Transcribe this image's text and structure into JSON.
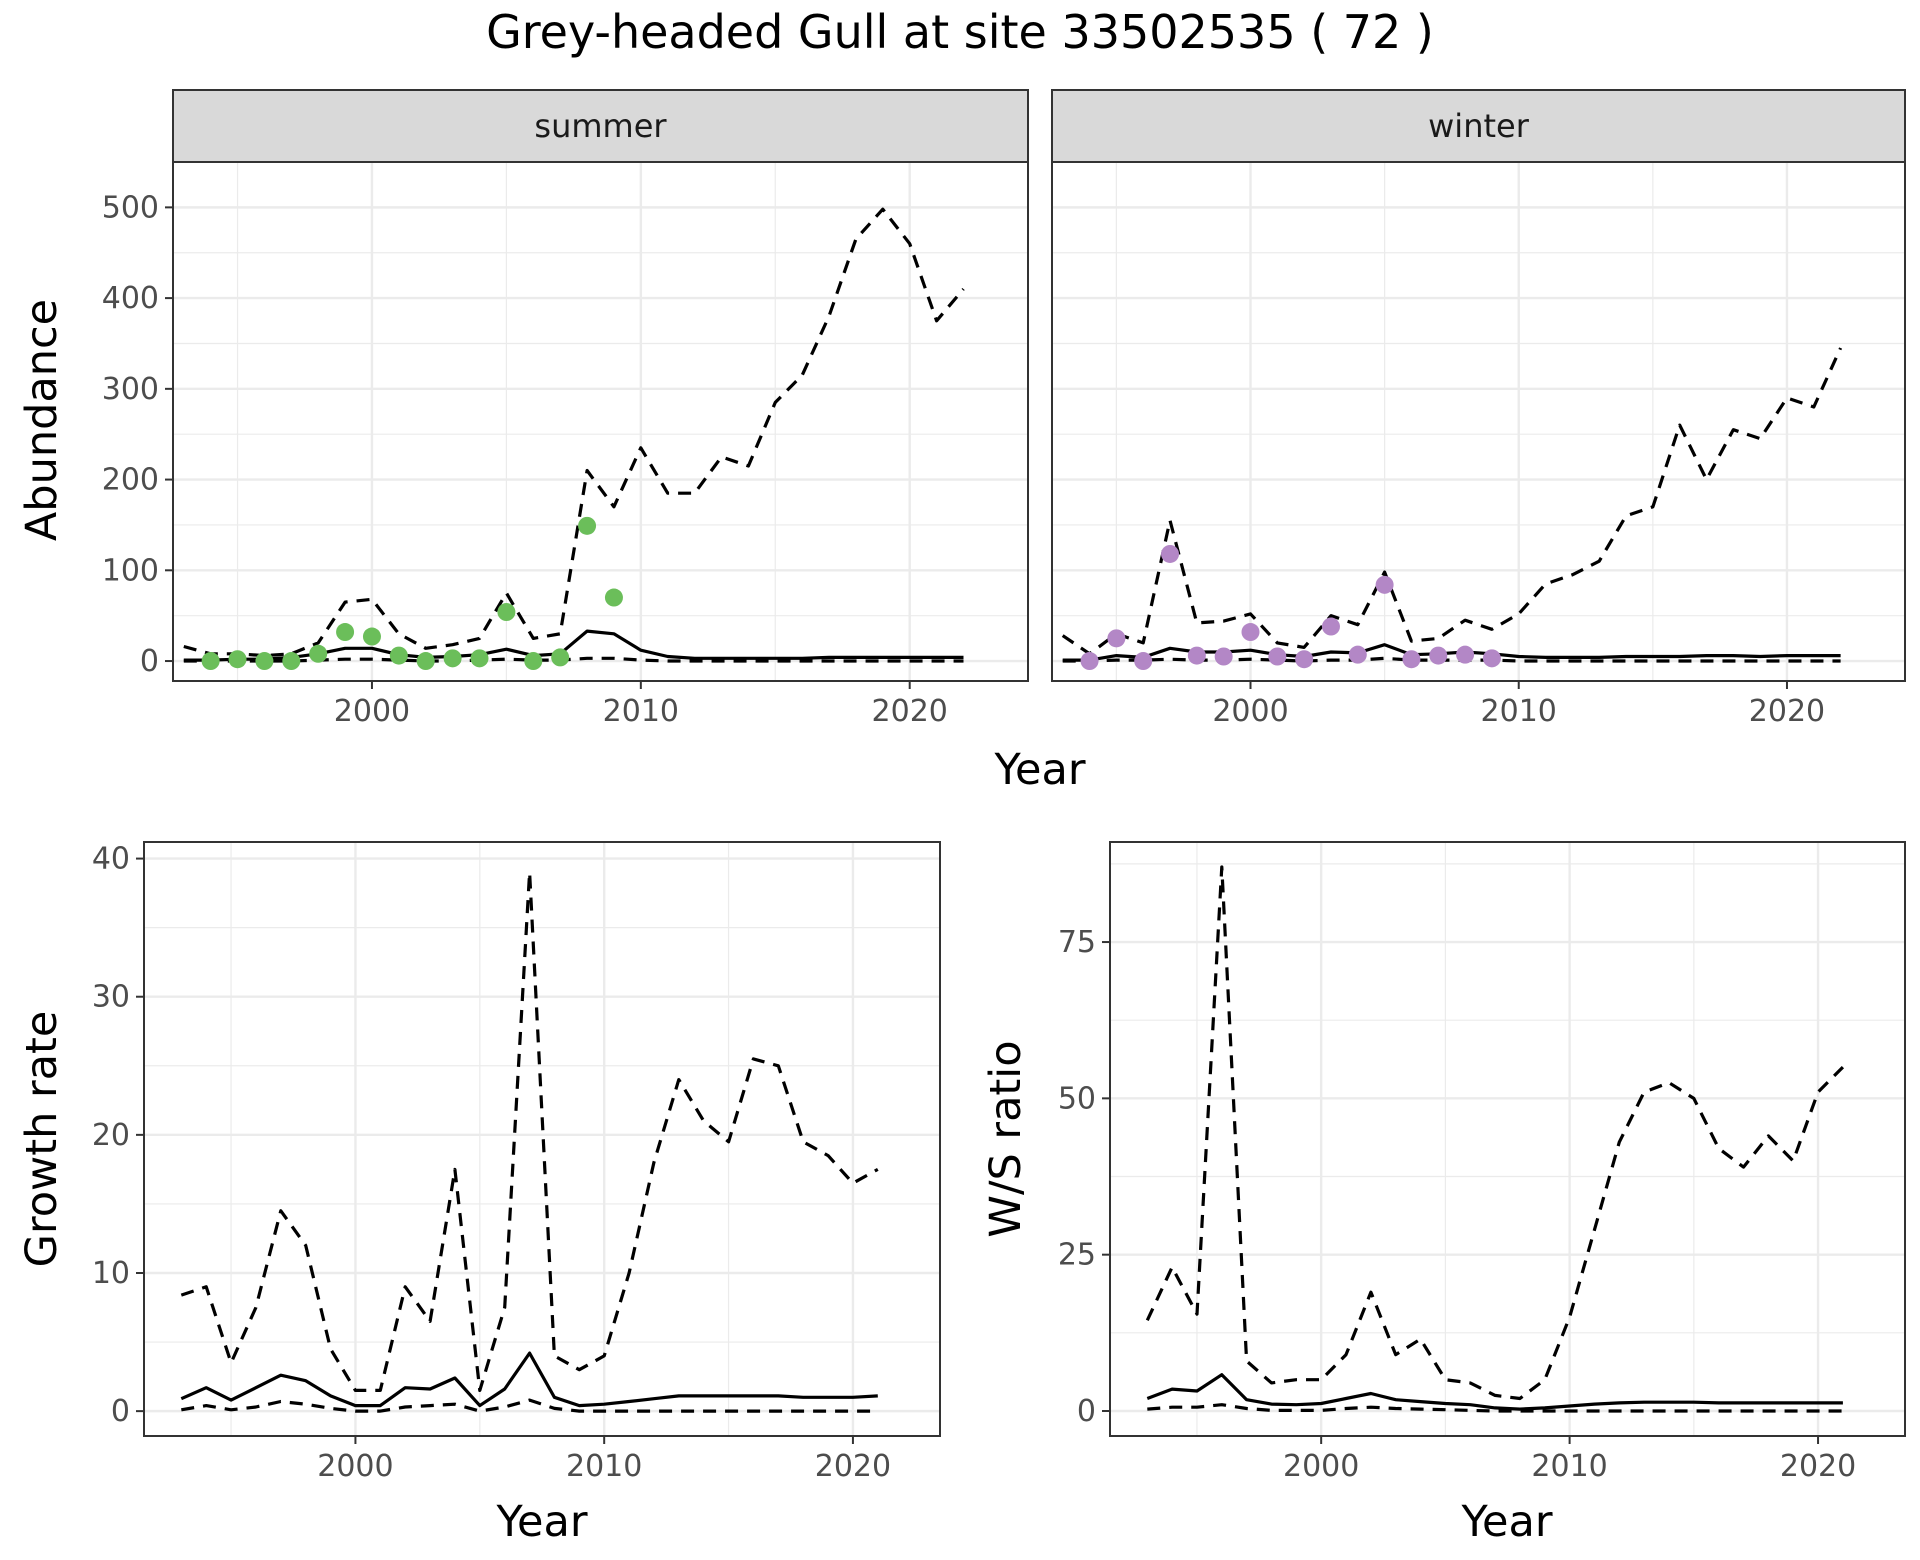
{
  "title": "Grey-headed Gull at site 33502535 ( 72 )",
  "colors": {
    "summer_points": "#6BBE5A",
    "winter_points": "#B387C6",
    "lines": "#000000",
    "grid": "#EBEBEB",
    "strip_bg": "#D9D9D9"
  },
  "chart_data": [
    {
      "type": "line",
      "panel": "summer",
      "strip": "summer",
      "xlabel": "Year",
      "ylabel": "Abundance",
      "xlim": [
        1992.6,
        2024.4
      ],
      "ylim": [
        -22,
        550
      ],
      "x_ticks": [
        2000,
        2010,
        2020
      ],
      "y_ticks": [
        0,
        100,
        200,
        300,
        400,
        500
      ],
      "grid": true,
      "series": [
        {
          "style": "dashed",
          "x": [
            1993,
            1994,
            1995,
            1996,
            1997,
            1998,
            1999,
            2000,
            2001,
            2002,
            2003,
            2004,
            2005,
            2006,
            2007,
            2008,
            2009,
            2010,
            2011,
            2012,
            2013,
            2014,
            2015,
            2016,
            2017,
            2018,
            2019,
            2020,
            2021,
            2022
          ],
          "y": [
            16,
            8,
            8,
            6,
            8,
            20,
            65,
            68,
            30,
            14,
            18,
            25,
            75,
            25,
            30,
            210,
            170,
            235,
            185,
            185,
            225,
            215,
            285,
            315,
            380,
            465,
            498,
            460,
            375,
            410
          ]
        },
        {
          "style": "solid",
          "x": [
            1993,
            1994,
            1995,
            1996,
            1997,
            1998,
            1999,
            2000,
            2001,
            2002,
            2003,
            2004,
            2005,
            2006,
            2007,
            2008,
            2009,
            2010,
            2011,
            2012,
            2013,
            2014,
            2015,
            2016,
            2017,
            2018,
            2019,
            2020,
            2021,
            2022
          ],
          "y": [
            1,
            1,
            2,
            2,
            4,
            8,
            14,
            14,
            7,
            4,
            5,
            7,
            13,
            6,
            8,
            33,
            30,
            12,
            5,
            3,
            3,
            3,
            3,
            3,
            4,
            4,
            4,
            4,
            4,
            4
          ]
        },
        {
          "style": "dashed",
          "x": [
            1993,
            1994,
            1995,
            1996,
            1997,
            1998,
            1999,
            2000,
            2001,
            2002,
            2003,
            2004,
            2005,
            2006,
            2007,
            2008,
            2009,
            2010,
            2011,
            2012,
            2013,
            2014,
            2015,
            2016,
            2017,
            2018,
            2019,
            2020,
            2021,
            2022
          ],
          "y": [
            0,
            0,
            0,
            0,
            0,
            1,
            2,
            2,
            1,
            0,
            0,
            1,
            2,
            1,
            1,
            3,
            3,
            1,
            0,
            0,
            0,
            0,
            0,
            0,
            0,
            0,
            0,
            0,
            0,
            0
          ]
        },
        {
          "style": "points",
          "color": "#6BBE5A",
          "x": [
            1994,
            1995,
            1996,
            1997,
            1998,
            1999,
            2000,
            2001,
            2002,
            2003,
            2004,
            2005,
            2006,
            2007,
            2008,
            2009
          ],
          "y": [
            0,
            2,
            0,
            0,
            8,
            32,
            27,
            6,
            0,
            3,
            3,
            54,
            0,
            4,
            149,
            70
          ]
        }
      ]
    },
    {
      "type": "line",
      "panel": "winter",
      "strip": "winter",
      "xlabel": "Year",
      "ylabel": "Abundance",
      "xlim": [
        1992.6,
        2024.4
      ],
      "ylim": [
        -22,
        550
      ],
      "x_ticks": [
        2000,
        2010,
        2020
      ],
      "y_ticks": [
        0,
        100,
        200,
        300,
        400,
        500
      ],
      "grid": true,
      "series": [
        {
          "style": "dashed",
          "x": [
            1993,
            1994,
            1995,
            1996,
            1997,
            1998,
            1999,
            2000,
            2001,
            2002,
            2003,
            2004,
            2005,
            2006,
            2007,
            2008,
            2009,
            2010,
            2011,
            2012,
            2013,
            2014,
            2015,
            2016,
            2017,
            2018,
            2019,
            2020,
            2021,
            2022
          ],
          "y": [
            28,
            8,
            30,
            20,
            155,
            42,
            44,
            52,
            20,
            15,
            50,
            40,
            98,
            22,
            25,
            45,
            35,
            52,
            85,
            95,
            110,
            160,
            170,
            260,
            200,
            255,
            245,
            290,
            280,
            345
          ]
        },
        {
          "style": "solid",
          "x": [
            1993,
            1994,
            1995,
            1996,
            1997,
            1998,
            1999,
            2000,
            2001,
            2002,
            2003,
            2004,
            2005,
            2006,
            2007,
            2008,
            2009,
            2010,
            2011,
            2012,
            2013,
            2014,
            2015,
            2016,
            2017,
            2018,
            2019,
            2020,
            2021,
            2022
          ],
          "y": [
            1,
            1,
            6,
            4,
            14,
            10,
            10,
            12,
            7,
            5,
            10,
            9,
            18,
            7,
            8,
            10,
            8,
            5,
            4,
            4,
            4,
            5,
            5,
            5,
            6,
            6,
            5,
            6,
            6,
            6
          ]
        },
        {
          "style": "dashed",
          "x": [
            1993,
            1994,
            1995,
            1996,
            1997,
            1998,
            1999,
            2000,
            2001,
            2002,
            2003,
            2004,
            2005,
            2006,
            2007,
            2008,
            2009,
            2010,
            2011,
            2012,
            2013,
            2014,
            2015,
            2016,
            2017,
            2018,
            2019,
            2020,
            2021,
            2022
          ],
          "y": [
            0,
            0,
            1,
            1,
            2,
            1,
            1,
            2,
            1,
            0,
            1,
            1,
            3,
            1,
            1,
            1,
            1,
            0,
            0,
            0,
            0,
            0,
            0,
            0,
            0,
            0,
            0,
            0,
            0,
            0
          ]
        },
        {
          "style": "points",
          "color": "#B387C6",
          "x": [
            1994,
            1995,
            1996,
            1997,
            1998,
            1999,
            2000,
            2001,
            2002,
            2003,
            2004,
            2005,
            2006,
            2007,
            2008,
            2009
          ],
          "y": [
            0,
            25,
            0,
            118,
            6,
            5,
            32,
            5,
            2,
            38,
            7,
            84,
            2,
            6,
            7,
            3
          ]
        }
      ]
    },
    {
      "type": "line",
      "panel": "growth",
      "xlabel": "Year",
      "ylabel": "Growth rate",
      "xlim": [
        1991.5,
        2023.5
      ],
      "ylim": [
        -1.8,
        41.2
      ],
      "x_ticks": [
        2000,
        2010,
        2020
      ],
      "y_ticks": [
        0,
        10,
        20,
        30,
        40
      ],
      "grid": true,
      "series": [
        {
          "style": "dashed",
          "x": [
            1993,
            1994,
            1995,
            1996,
            1997,
            1998,
            1999,
            2000,
            2001,
            2002,
            2003,
            2004,
            2005,
            2006,
            2007,
            2008,
            2009,
            2010,
            2011,
            2012,
            2013,
            2014,
            2015,
            2016,
            2017,
            2018,
            2019,
            2020,
            2021
          ],
          "y": [
            8.4,
            9,
            3.5,
            7.5,
            14.5,
            12,
            4.5,
            1.5,
            1.5,
            9,
            6.5,
            17.5,
            1.5,
            7.5,
            39,
            4,
            3,
            4,
            10,
            18,
            24,
            21,
            19.5,
            25.5,
            25,
            19.5,
            18.5,
            16.5,
            17.5
          ]
        },
        {
          "style": "solid",
          "x": [
            1993,
            1994,
            1995,
            1996,
            1997,
            1998,
            1999,
            2000,
            2001,
            2002,
            2003,
            2004,
            2005,
            2006,
            2007,
            2008,
            2009,
            2010,
            2011,
            2012,
            2013,
            2014,
            2015,
            2016,
            2017,
            2018,
            2019,
            2020,
            2021
          ],
          "y": [
            0.9,
            1.7,
            0.8,
            1.7,
            2.6,
            2.2,
            1.1,
            0.4,
            0.4,
            1.7,
            1.6,
            2.4,
            0.4,
            1.6,
            4.2,
            1,
            0.4,
            0.5,
            0.7,
            0.9,
            1.1,
            1.1,
            1.1,
            1.1,
            1.1,
            1,
            1,
            1,
            1.1
          ]
        },
        {
          "style": "dashed",
          "x": [
            1993,
            1994,
            1995,
            1996,
            1997,
            1998,
            1999,
            2000,
            2001,
            2002,
            2003,
            2004,
            2005,
            2006,
            2007,
            2008,
            2009,
            2010,
            2011,
            2012,
            2013,
            2014,
            2015,
            2016,
            2017,
            2018,
            2019,
            2020,
            2021
          ],
          "y": [
            0.1,
            0.4,
            0.1,
            0.3,
            0.7,
            0.5,
            0.2,
            0,
            0,
            0.3,
            0.4,
            0.5,
            0,
            0.3,
            0.8,
            0.2,
            0,
            0,
            0,
            0,
            0,
            0,
            0,
            0,
            0,
            0,
            0,
            0,
            0
          ]
        }
      ]
    },
    {
      "type": "line",
      "panel": "ratio",
      "xlabel": "Year",
      "ylabel": "W/S ratio",
      "xlim": [
        1991.5,
        2023.5
      ],
      "ylim": [
        -4,
        91
      ],
      "x_ticks": [
        2000,
        2010,
        2020
      ],
      "y_ticks": [
        0,
        25,
        50,
        75
      ],
      "grid": true,
      "series": [
        {
          "style": "dashed",
          "x": [
            1993,
            1994,
            1995,
            1996,
            1997,
            1998,
            1999,
            2000,
            2001,
            2002,
            2003,
            2004,
            2005,
            2006,
            2007,
            2008,
            2009,
            2010,
            2011,
            2012,
            2013,
            2014,
            2015,
            2016,
            2017,
            2018,
            2019,
            2020,
            2021
          ],
          "y": [
            14.5,
            23,
            15.5,
            87,
            8,
            4.5,
            5,
            5,
            9,
            19,
            9,
            11.5,
            5,
            4.5,
            2.5,
            2,
            5,
            15,
            29,
            43,
            51,
            52.5,
            50,
            42,
            39,
            44,
            40,
            51,
            55
          ]
        },
        {
          "style": "solid",
          "x": [
            1993,
            1994,
            1995,
            1996,
            1997,
            1998,
            1999,
            2000,
            2001,
            2002,
            2003,
            2004,
            2005,
            2006,
            2007,
            2008,
            2009,
            2010,
            2011,
            2012,
            2013,
            2014,
            2015,
            2016,
            2017,
            2018,
            2019,
            2020,
            2021
          ],
          "y": [
            2,
            3.5,
            3.2,
            5.8,
            1.8,
            1.1,
            1,
            1.2,
            2,
            2.8,
            1.8,
            1.5,
            1.2,
            1,
            0.5,
            0.3,
            0.5,
            0.8,
            1.1,
            1.3,
            1.4,
            1.4,
            1.4,
            1.3,
            1.3,
            1.3,
            1.3,
            1.3,
            1.3
          ]
        },
        {
          "style": "dashed",
          "x": [
            1993,
            1994,
            1995,
            1996,
            1997,
            1998,
            1999,
            2000,
            2001,
            2002,
            2003,
            2004,
            2005,
            2006,
            2007,
            2008,
            2009,
            2010,
            2011,
            2012,
            2013,
            2014,
            2015,
            2016,
            2017,
            2018,
            2019,
            2020,
            2021
          ],
          "y": [
            0.3,
            0.6,
            0.6,
            1,
            0.4,
            0.1,
            0.1,
            0.1,
            0.4,
            0.6,
            0.4,
            0.3,
            0.2,
            0.1,
            0,
            0,
            0,
            0,
            0,
            0,
            0,
            0,
            0,
            0,
            0,
            0,
            0,
            0,
            0
          ]
        }
      ]
    }
  ]
}
